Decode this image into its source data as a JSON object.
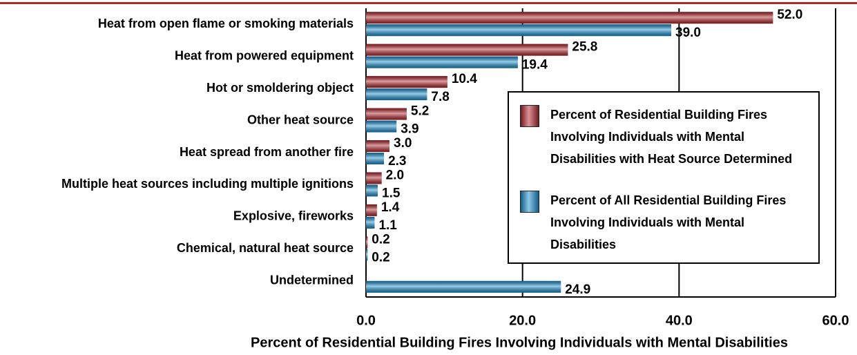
{
  "chart_data": {
    "type": "hbar",
    "xlabel": "Percent of Residential Building Fires Involving Individuals with Mental Disabilities",
    "categories": [
      "Heat from open flame or smoking materials",
      "Heat from powered equipment",
      "Hot or smoldering object",
      "Other heat source",
      "Heat spread from another fire",
      "Multiple heat sources including multiple ignitions",
      "Explosive, fireworks",
      "Chemical, natural heat source",
      "Undetermined"
    ],
    "series": [
      {
        "name": "Percent of Residential Building Fires Involving Individuals with Mental Disabilities with Heat Source Determined",
        "color": "#b3262c",
        "values": [
          52.0,
          25.8,
          10.4,
          5.2,
          3.0,
          2.0,
          1.4,
          0.2,
          null
        ],
        "value_labels": [
          "52.0",
          "25.8",
          "10.4",
          "5.2",
          "3.0",
          "2.0",
          "1.4",
          "0.2",
          null
        ]
      },
      {
        "name": "Percent of All Residential Building Fires Involving Individuals with Mental Disabilities",
        "color": "#1b8fcf",
        "values": [
          39.0,
          19.4,
          7.8,
          3.9,
          2.3,
          1.5,
          1.1,
          0.2,
          24.9
        ],
        "value_labels": [
          "39.0",
          "19.4",
          "7.8",
          "3.9",
          "2.3",
          "1.5",
          "1.1",
          "0.2",
          "24.9"
        ]
      }
    ],
    "xlim": [
      0,
      60
    ],
    "xticks": [
      {
        "value": 0,
        "label": "0.0"
      },
      {
        "value": 20,
        "label": "20.0"
      },
      {
        "value": 40,
        "label": "40.0"
      },
      {
        "value": 60,
        "label": "60.0"
      }
    ],
    "grid": true
  }
}
